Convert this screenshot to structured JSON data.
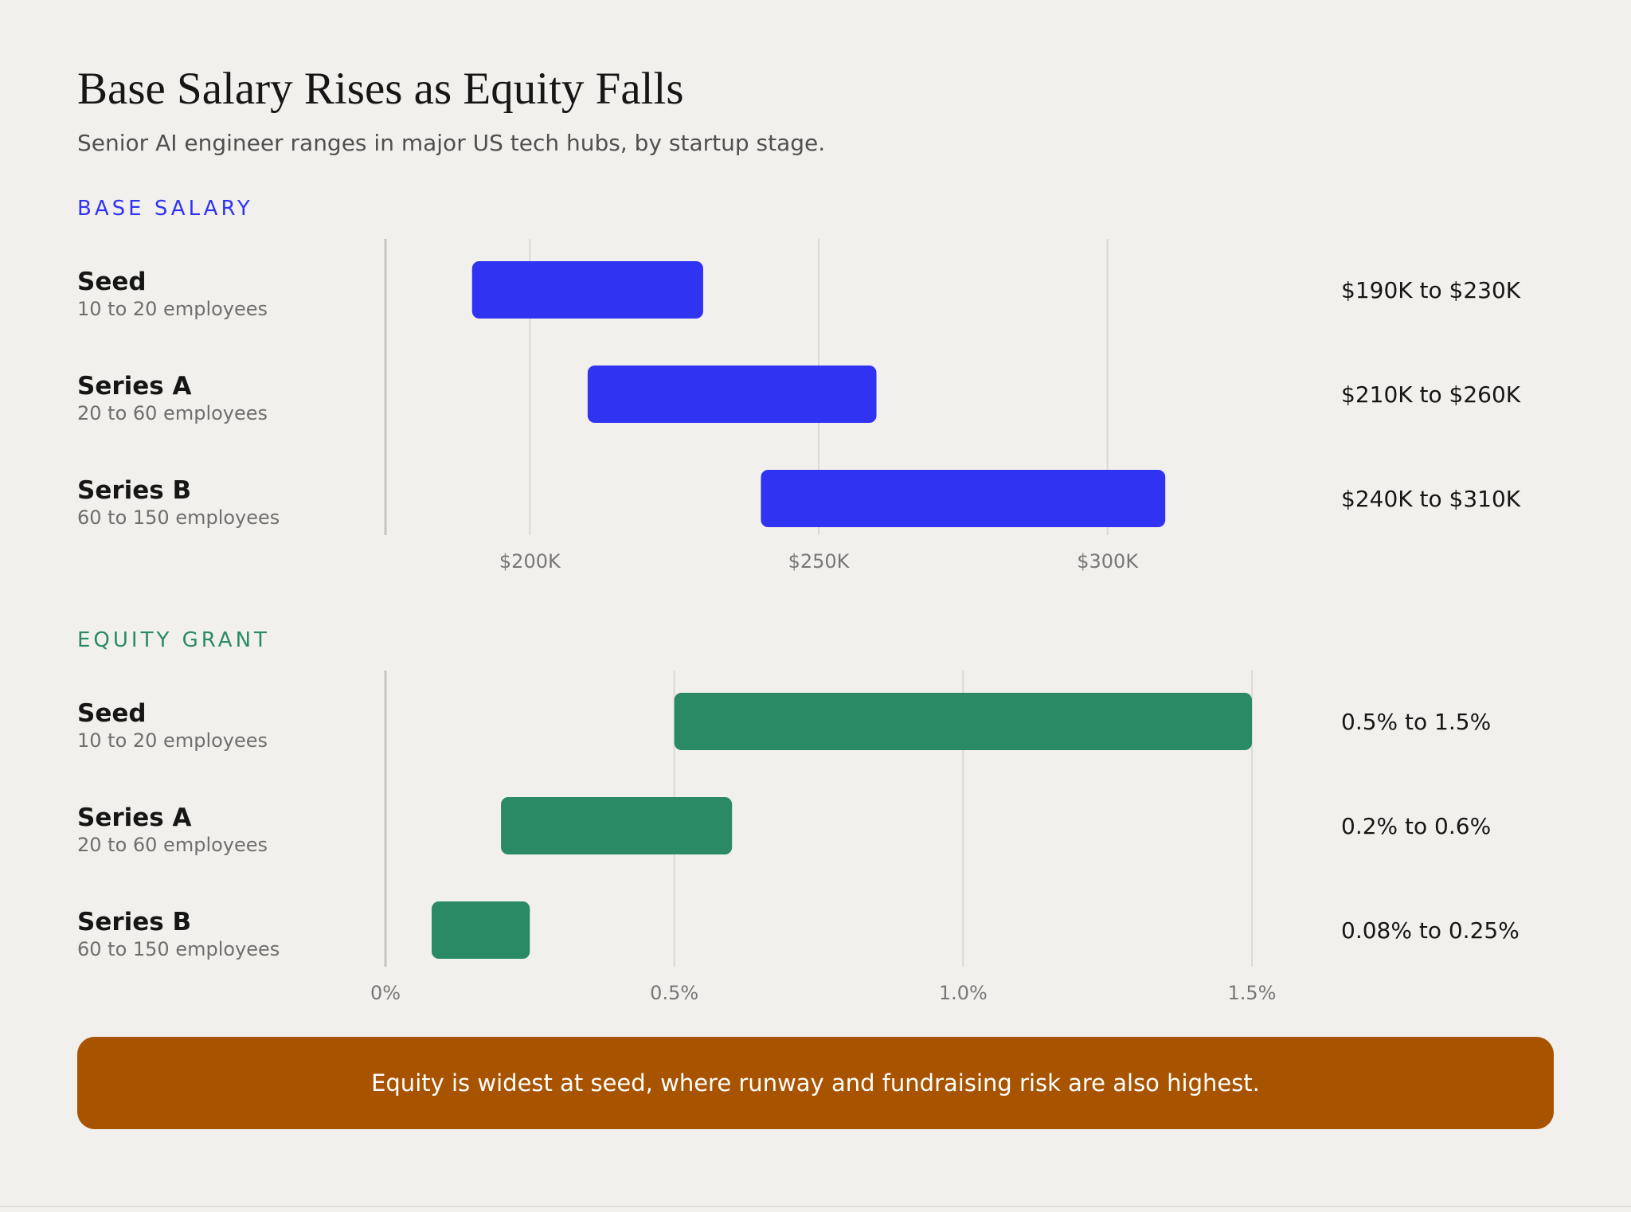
{
  "title": "Base Salary Rises as Equity Falls",
  "subtitle": "Senior AI engineer ranges in major US tech hubs, by startup stage.",
  "callout": "Equity is widest at seed, where runway and fundraising risk are also highest.",
  "colors": {
    "background": "#f2f0ec",
    "salary": "#3033f2",
    "equity": "#2a8a65",
    "callout": "#a85300"
  },
  "chart_data": [
    {
      "type": "range-bar",
      "title": "BASE SALARY",
      "unit": "USD thousands",
      "xlim": [
        175,
        325
      ],
      "ticks": [
        200,
        250,
        300
      ],
      "tick_labels": [
        "$200K",
        "$250K",
        "$300K"
      ],
      "grid": true,
      "rows": [
        {
          "name": "Seed",
          "sub": "10 to 20 employees",
          "low": 190,
          "high": 230,
          "label": "$190K to $230K"
        },
        {
          "name": "Series A",
          "sub": "20 to 60 employees",
          "low": 210,
          "high": 260,
          "label": "$210K to $260K"
        },
        {
          "name": "Series B",
          "sub": "60 to 150 employees",
          "low": 240,
          "high": 310,
          "label": "$240K to $310K"
        }
      ]
    },
    {
      "type": "range-bar",
      "title": "EQUITY GRANT",
      "unit": "percent",
      "xlim": [
        0,
        1.5
      ],
      "ticks": [
        0,
        0.5,
        1.0,
        1.5
      ],
      "tick_labels": [
        "0%",
        "0.5%",
        "1.0%",
        "1.5%"
      ],
      "grid": true,
      "rows": [
        {
          "name": "Seed",
          "sub": "10 to 20 employees",
          "low": 0.5,
          "high": 1.5,
          "label": "0.5% to 1.5%"
        },
        {
          "name": "Series A",
          "sub": "20 to 60 employees",
          "low": 0.2,
          "high": 0.6,
          "label": "0.2% to 0.6%"
        },
        {
          "name": "Series B",
          "sub": "60 to 150 employees",
          "low": 0.08,
          "high": 0.25,
          "label": "0.08% to 0.25%"
        }
      ]
    }
  ]
}
